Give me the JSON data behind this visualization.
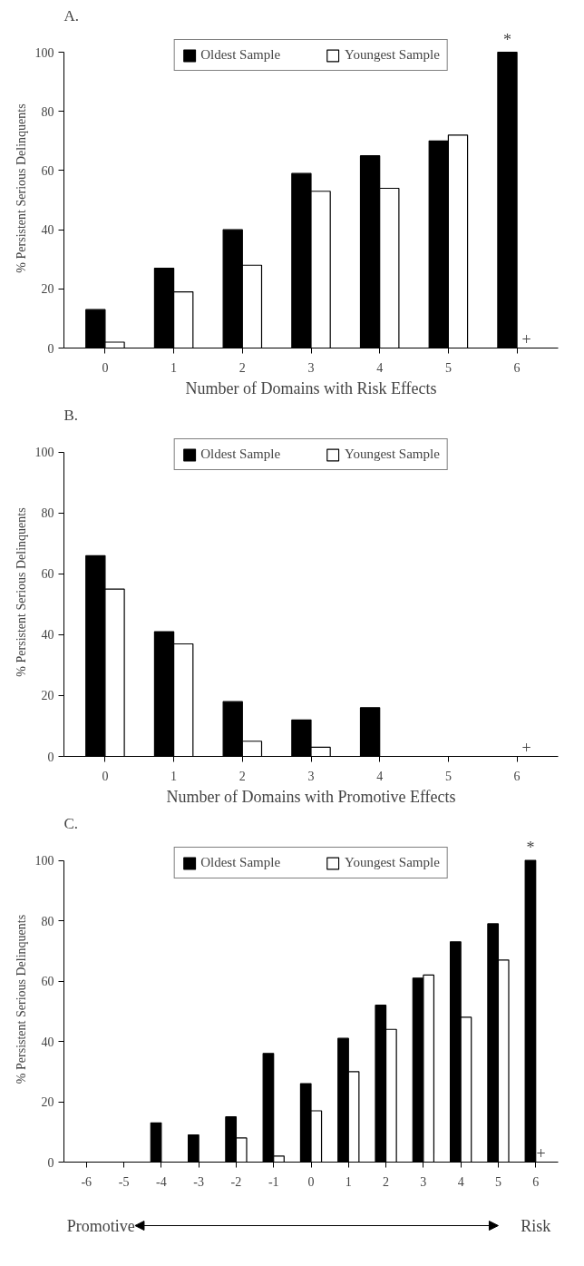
{
  "chart_data": [
    {
      "type": "bar",
      "title": "A.",
      "xlabel": "Number of Domains with Risk Effects",
      "ylabel": "% Persistent Serious Delinquents",
      "categories": [
        "0",
        "1",
        "2",
        "3",
        "4",
        "5",
        "6"
      ],
      "series": [
        {
          "name": "Oldest Sample",
          "color": "#000000",
          "values": [
            13,
            27,
            40,
            59,
            65,
            70,
            100
          ]
        },
        {
          "name": "Youngest Sample",
          "color": "#ffffff",
          "values": [
            2,
            19,
            28,
            53,
            54,
            72,
            null
          ]
        }
      ],
      "ylim": [
        0,
        100
      ],
      "yticks": [
        0,
        20,
        40,
        60,
        80,
        100
      ],
      "grid": false,
      "legend": "top",
      "annotations": [
        {
          "text": "*",
          "x": "6",
          "y": 100
        },
        {
          "text": "+",
          "x": "6",
          "y": 0
        }
      ]
    },
    {
      "type": "bar",
      "title": "B.",
      "xlabel": "Number of Domains with Promotive Effects",
      "ylabel": "% Persistent Serious Delinquents",
      "categories": [
        "0",
        "1",
        "2",
        "3",
        "4",
        "5",
        "6"
      ],
      "series": [
        {
          "name": "Oldest Sample",
          "color": "#000000",
          "values": [
            66,
            41,
            18,
            12,
            16,
            0,
            0
          ]
        },
        {
          "name": "Youngest Sample",
          "color": "#ffffff",
          "values": [
            55,
            37,
            5,
            3,
            null,
            null,
            null
          ]
        }
      ],
      "ylim": [
        0,
        100
      ],
      "yticks": [
        0,
        20,
        40,
        60,
        80,
        100
      ],
      "grid": false,
      "legend": "top",
      "annotations": [
        {
          "text": "+",
          "x": "6",
          "y": 0
        }
      ]
    },
    {
      "type": "bar",
      "title": "C.",
      "ylabel": "% Persistent Serious Delinquents",
      "categories": [
        "-6",
        "-5",
        "-4",
        "-3",
        "-2",
        "-1",
        "0",
        "1",
        "2",
        "3",
        "4",
        "5",
        "6"
      ],
      "series": [
        {
          "name": "Oldest Sample",
          "color": "#000000",
          "values": [
            null,
            null,
            13,
            9,
            15,
            36,
            26,
            41,
            52,
            61,
            73,
            79,
            100
          ]
        },
        {
          "name": "Youngest Sample",
          "color": "#ffffff",
          "values": [
            null,
            null,
            null,
            null,
            8,
            2,
            17,
            30,
            44,
            62,
            48,
            67,
            null
          ]
        }
      ],
      "ylim": [
        0,
        100
      ],
      "yticks": [
        0,
        20,
        40,
        60,
        80,
        100
      ],
      "grid": false,
      "legend": "top",
      "annotations": [
        {
          "text": "*",
          "x": "6",
          "y": 100
        },
        {
          "text": "+",
          "x": "6",
          "y": 0
        },
        "Promotive",
        "Risk"
      ]
    }
  ]
}
